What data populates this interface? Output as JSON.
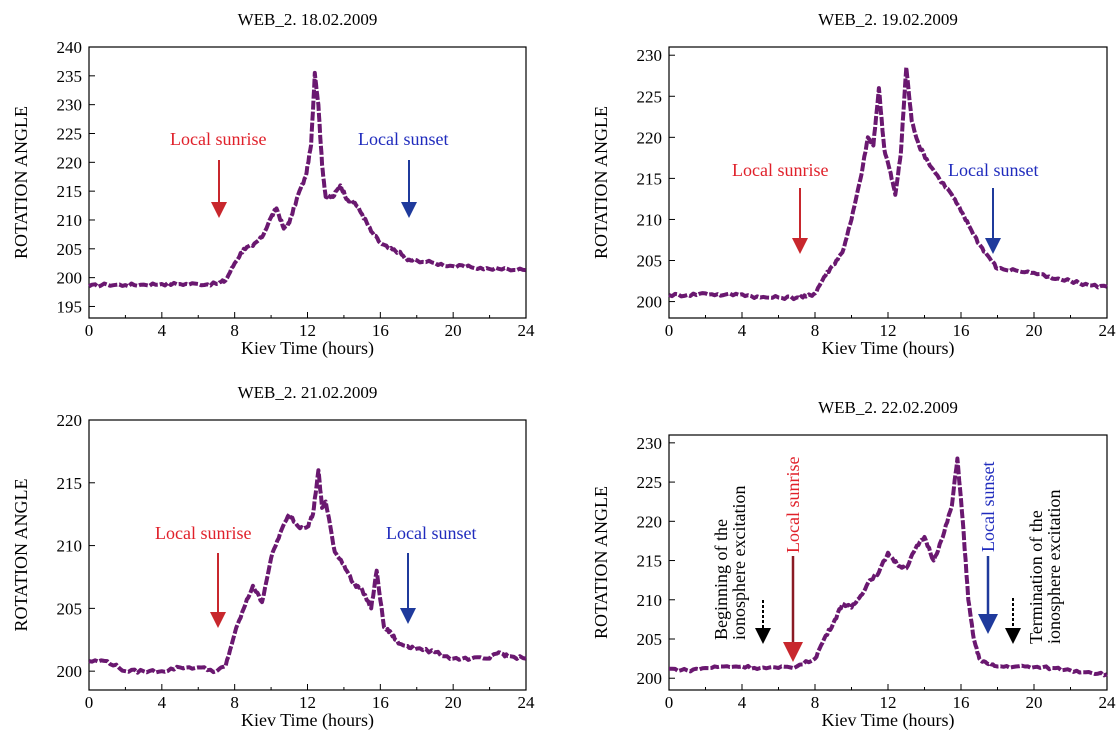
{
  "chart_data": [
    {
      "type": "line",
      "title": "WEB_2. 18.02.2009",
      "xlabel": "Kiev Time (hours)",
      "ylabel": "ROTATION ANGLE",
      "xlim": [
        0,
        24
      ],
      "ylim": [
        193,
        240
      ],
      "xticks": [
        "0",
        "4",
        "8",
        "12",
        "16",
        "20",
        "24"
      ],
      "yticks": [
        "195",
        "200",
        "205",
        "210",
        "215",
        "220",
        "225",
        "230",
        "235",
        "240"
      ],
      "series_color": "#6a1870",
      "x": [
        0,
        1,
        2,
        3,
        4,
        5,
        6,
        7,
        7.5,
        8,
        8.5,
        9,
        9.5,
        10,
        10.3,
        10.7,
        11,
        11.5,
        11.9,
        12.2,
        12.4,
        12.6,
        12.8,
        13,
        13.4,
        13.8,
        14.2,
        14.6,
        15,
        15.5,
        16,
        16.5,
        17,
        17.5,
        18,
        19,
        20,
        21,
        22,
        23,
        24
      ],
      "y": [
        198.5,
        198.8,
        198.7,
        198.8,
        198.9,
        198.9,
        198.9,
        198.9,
        199.5,
        202.5,
        205,
        205.5,
        207,
        210.5,
        212,
        208.5,
        209.5,
        214.5,
        217.5,
        223,
        235.5,
        230,
        219.5,
        214,
        214,
        216,
        213.5,
        213,
        211,
        208,
        206,
        205,
        204.5,
        203,
        203,
        202.5,
        202,
        201.8,
        201.5,
        201.5,
        201.3
      ],
      "annotations": [
        {
          "text": "Local sunrise",
          "x": 7.2,
          "color": "#e0202a"
        },
        {
          "text": "Local sunset",
          "x": 17.7,
          "color": "#1f2bbd"
        }
      ]
    },
    {
      "type": "line",
      "title": "WEB_2. 19.02.2009",
      "xlabel": "Kiev Time (hours)",
      "ylabel": "ROTATION ANGLE",
      "xlim": [
        0,
        24
      ],
      "ylim": [
        198,
        231
      ],
      "xticks": [
        "0",
        "4",
        "8",
        "12",
        "16",
        "20",
        "24"
      ],
      "yticks": [
        "200",
        "205",
        "210",
        "215",
        "220",
        "225",
        "230"
      ],
      "series_color": "#6a1870",
      "x": [
        0,
        1,
        2,
        3,
        4,
        5,
        6,
        7,
        7.5,
        8,
        8.5,
        9,
        9.5,
        10,
        10.5,
        10.9,
        11.2,
        11.5,
        11.8,
        12.1,
        12.4,
        12.7,
        13,
        13.3,
        13.7,
        14.2,
        14.8,
        15.5,
        16,
        16.5,
        17,
        17.5,
        18,
        19,
        20,
        21,
        22,
        23,
        24
      ],
      "y": [
        200.8,
        200.8,
        201,
        200.8,
        200.9,
        200.5,
        200.5,
        200.5,
        200.6,
        201,
        203,
        204.5,
        206,
        210,
        215,
        220,
        219,
        226,
        218.5,
        216,
        213,
        218,
        228.5,
        222,
        219,
        217,
        215,
        213,
        211,
        209,
        207,
        205.5,
        204,
        203.8,
        203.5,
        202.8,
        202.5,
        202,
        201.8
      ]
    },
    {
      "type": "line",
      "title": "WEB_2. 21.02.2009",
      "xlabel": "Kiev Time (hours)",
      "ylabel": "ROTATION ANGLE",
      "xlim": [
        0,
        24
      ],
      "ylim": [
        198.5,
        220
      ],
      "xticks": [
        "0",
        "4",
        "8",
        "12",
        "16",
        "20",
        "24"
      ],
      "yticks": [
        "200",
        "205",
        "210",
        "215",
        "220"
      ],
      "series_color": "#6a1870",
      "x": [
        0,
        1,
        2,
        3,
        4,
        5,
        6,
        7,
        7.5,
        8,
        8.5,
        9,
        9.5,
        10,
        10.5,
        11,
        11.5,
        12,
        12.3,
        12.6,
        12.8,
        13,
        13.5,
        14,
        14.5,
        15,
        15.5,
        15.8,
        16.2,
        16.6,
        17,
        17.5,
        18,
        19,
        20,
        21,
        22,
        22.5,
        23,
        24
      ],
      "y": [
        200.8,
        200.8,
        200,
        200,
        200,
        200.3,
        200.3,
        200,
        200.4,
        203,
        205,
        206.8,
        205.5,
        209,
        211,
        212.5,
        211.5,
        211.5,
        212.5,
        216,
        213,
        213.5,
        209.5,
        208.5,
        207,
        206.5,
        205,
        208,
        203.5,
        203,
        202.2,
        202,
        201.8,
        201.5,
        201,
        201,
        201,
        201.5,
        201.2,
        201
      ]
    },
    {
      "type": "line",
      "title": "WEB_2. 22.02.2009",
      "xlabel": "Kiev Time (hours)",
      "ylabel": "ROTATION ANGLE",
      "xlim": [
        0,
        24
      ],
      "ylim": [
        198.5,
        231
      ],
      "xticks": [
        "0",
        "4",
        "8",
        "12",
        "16",
        "20",
        "24"
      ],
      "yticks": [
        "200",
        "205",
        "210",
        "215",
        "220",
        "225",
        "230"
      ],
      "series_color": "#6a1870",
      "x": [
        0,
        1,
        2,
        3,
        4,
        5,
        6,
        7,
        8,
        8.5,
        9,
        9.5,
        10,
        10.5,
        11,
        11.5,
        12,
        12.5,
        13,
        13.5,
        14,
        14.5,
        15,
        15.5,
        15.8,
        16.1,
        16.4,
        16.7,
        17,
        17.5,
        18,
        19,
        20,
        21,
        22,
        23,
        24
      ],
      "y": [
        201.2,
        201,
        201.3,
        201.5,
        201.5,
        201.3,
        201.3,
        201.5,
        202.5,
        205,
        207,
        209.5,
        209,
        210.5,
        212.5,
        213.5,
        216,
        214.5,
        214,
        216.5,
        218,
        215,
        218,
        222,
        228,
        220,
        210,
        205,
        202.5,
        201.8,
        201.5,
        201.5,
        201.4,
        201.3,
        201,
        200.8,
        200.5
      ]
    }
  ],
  "annotations": {
    "p1_sunrise": "Local sunrise",
    "p1_sunset": "Local sunset",
    "p2_sunrise": "Local sunrise",
    "p2_sunset": "Local sunset",
    "p3_sunrise": "Local sunrise",
    "p3_sunset": "Local sunset",
    "p4_begin_1": "Beginning of the",
    "p4_begin_2": "ionosphere excitation",
    "p4_sunrise": "Local sunrise",
    "p4_sunset": "Local sunset",
    "p4_term_1": "Termination of the",
    "p4_term_2": "ionosphere excitation"
  },
  "colors": {
    "sunrise": "#e0202a",
    "sunset": "#1f2bbd",
    "series": "#6a1870"
  }
}
